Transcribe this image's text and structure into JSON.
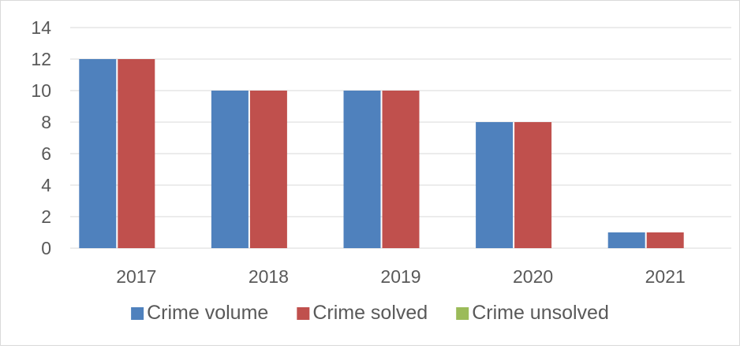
{
  "chart_data": {
    "type": "bar",
    "title": "",
    "xlabel": "",
    "ylabel": "",
    "categories": [
      "2017",
      "2018",
      "2019",
      "2020",
      "2021"
    ],
    "ylim": [
      0,
      14
    ],
    "yticks": [
      0,
      2,
      4,
      6,
      8,
      10,
      12,
      14
    ],
    "grid": true,
    "legend_position": "bottom",
    "series": [
      {
        "name": "Crime volume",
        "color": "#4f81bd",
        "values": [
          12,
          10,
          10,
          8,
          1
        ]
      },
      {
        "name": "Crime solved",
        "color": "#c0504d",
        "values": [
          12,
          10,
          10,
          8,
          1
        ]
      },
      {
        "name": "Crime unsolved",
        "color": "#9bbb59",
        "values": [
          0,
          0,
          0,
          0,
          0
        ]
      }
    ]
  }
}
